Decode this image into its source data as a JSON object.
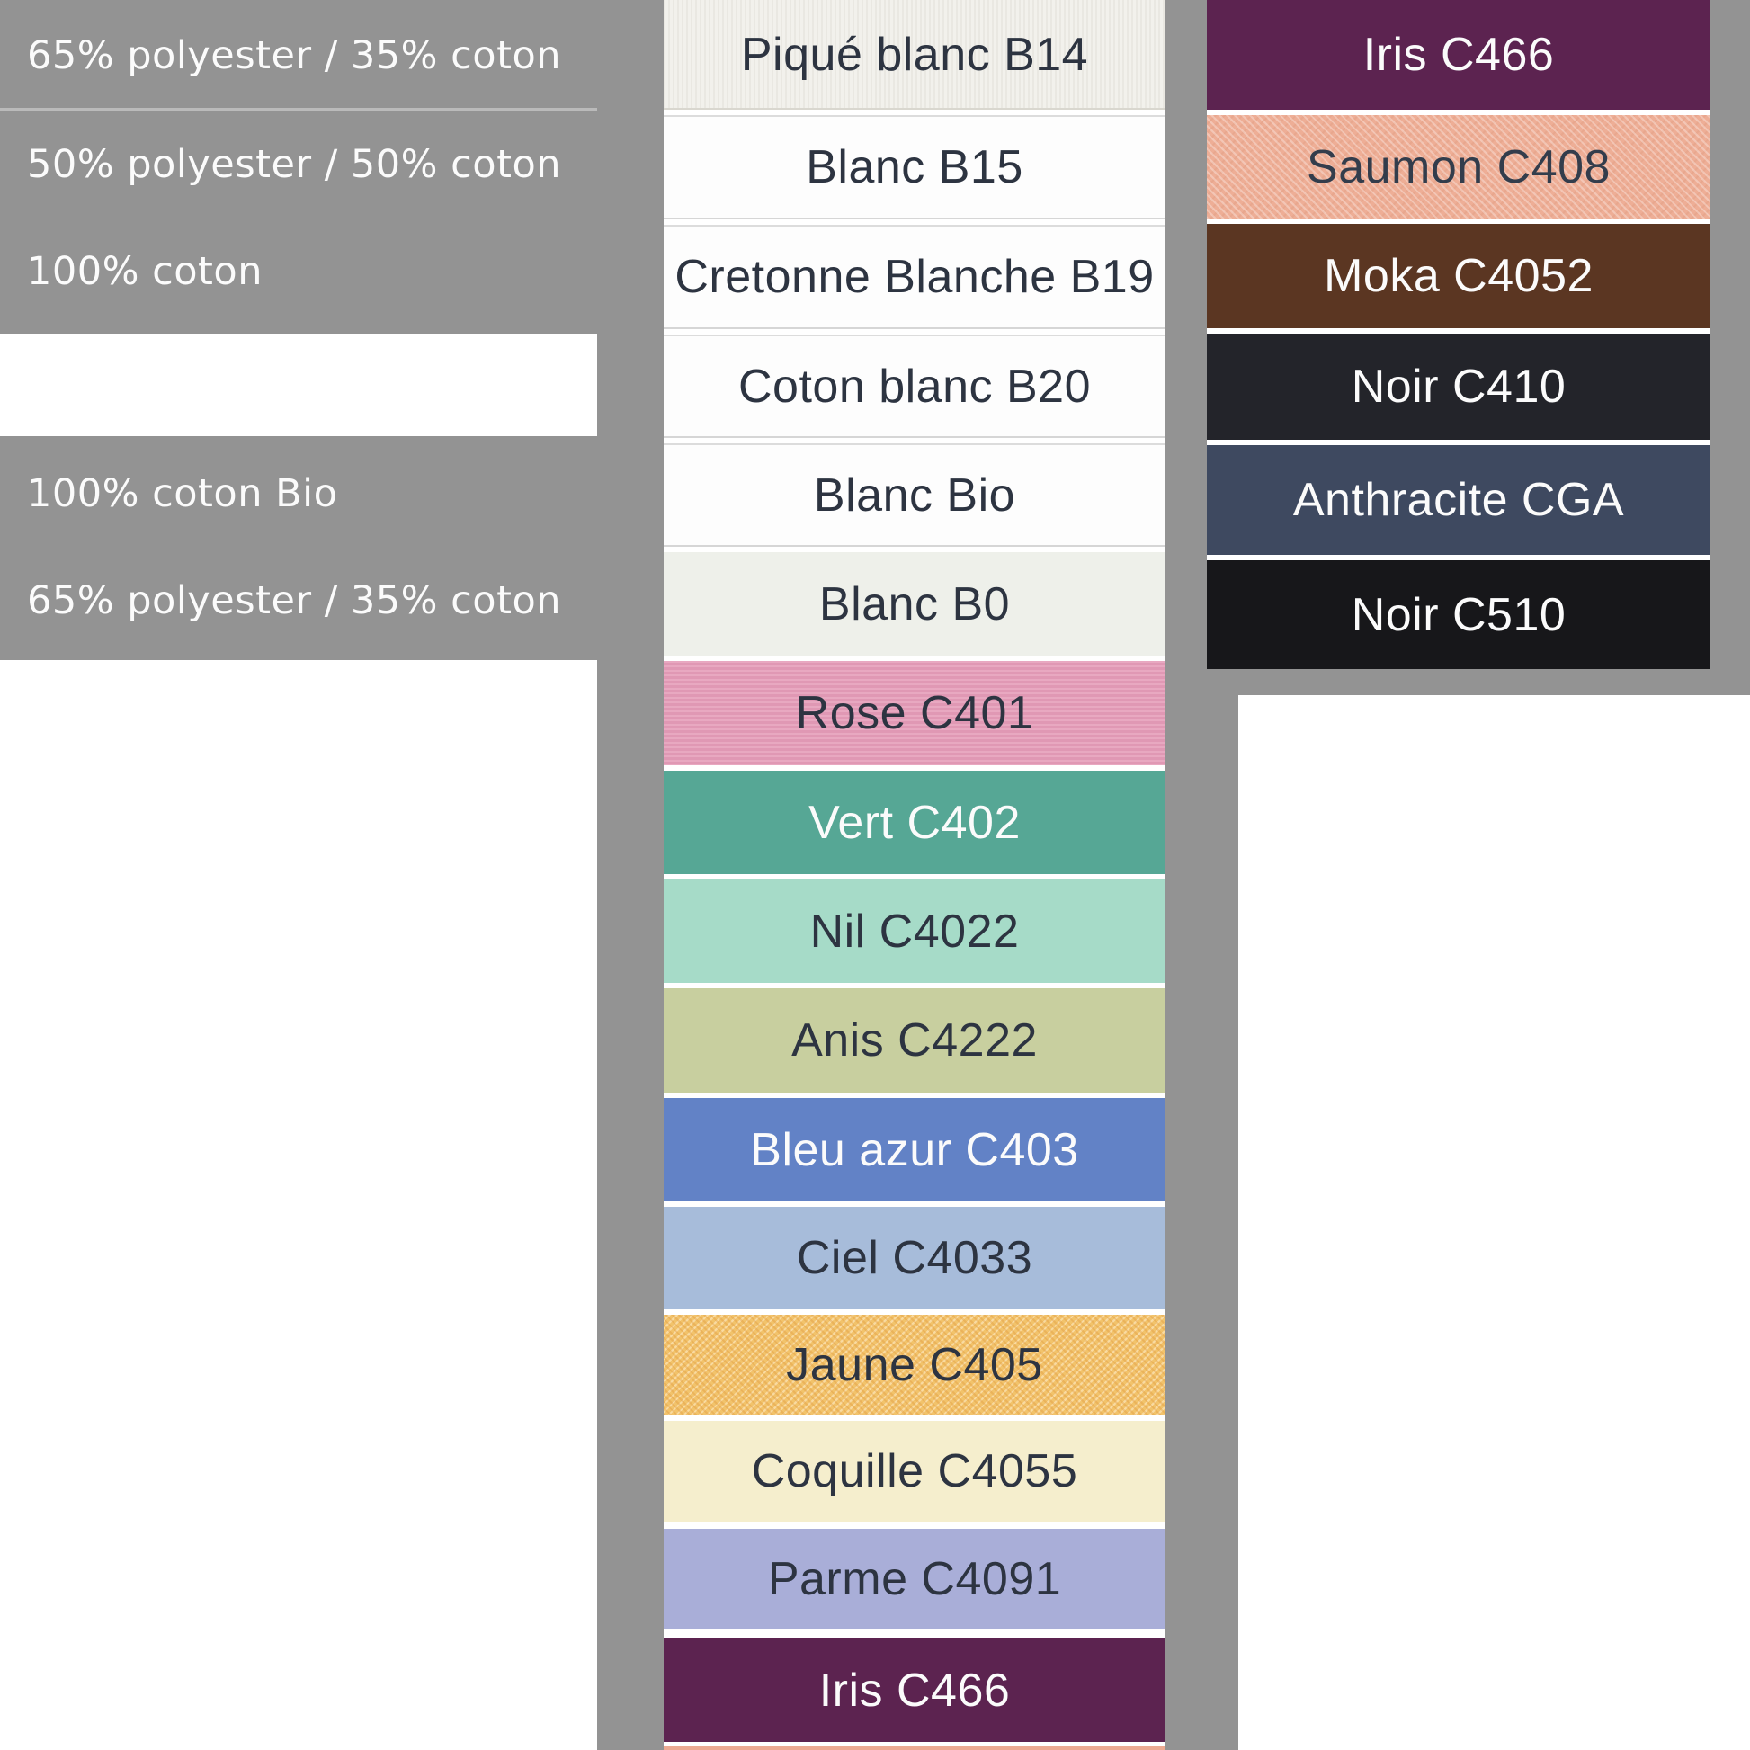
{
  "page": {
    "background": "#939393",
    "left_divider_color": "#bababa",
    "panel_white": "#ffffff"
  },
  "left_column": {
    "text_color": "#fbfbfb",
    "rows": [
      {
        "label": "65% polyester / 35% coton"
      },
      {
        "label": "50% polyester / 50% coton"
      },
      {
        "label": "100% coton"
      },
      {
        "label": "100% coton Bio"
      },
      {
        "label": "65% polyester / 35% coton"
      }
    ]
  },
  "middle_column": {
    "swatches": [
      {
        "label": "Piqué blanc B14",
        "bg": "#f2f1ec",
        "text": "#2d3441",
        "texture": "pique"
      },
      {
        "label": "Blanc B15",
        "bg": "#fdfdfd",
        "text": "#2d3441",
        "texture": "white-edge"
      },
      {
        "label": "Cretonne Blanche B19",
        "bg": "#fdfdfd",
        "text": "#2d3441",
        "texture": "white-edge"
      },
      {
        "label": "Coton blanc B20",
        "bg": "#fdfdfd",
        "text": "#2d3441",
        "texture": "white-edge"
      },
      {
        "label": "Blanc Bio",
        "bg": "#fdfdfd",
        "text": "#2d3441",
        "texture": "white-edge"
      },
      {
        "label": "Blanc B0",
        "bg": "#eef0ea",
        "text": "#2d3441",
        "texture": null
      },
      {
        "label": "Rose C401",
        "bg": "#e59cb8",
        "text": "#2d3441",
        "texture": "rose-weave"
      },
      {
        "label": "Vert C402",
        "bg": "#56a795",
        "text": "#fbfbfb",
        "texture": null
      },
      {
        "label": "Nil C4022",
        "bg": "#a6dbc8",
        "text": "#2d3441",
        "texture": null
      },
      {
        "label": "Anis C4222",
        "bg": "#c8cf9f",
        "text": "#2d3441",
        "texture": null
      },
      {
        "label": "Bleu azur C403",
        "bg": "#6282c6",
        "text": "#fbfbfb",
        "texture": null
      },
      {
        "label": "Ciel C4033",
        "bg": "#a7bcda",
        "text": "#2d3441",
        "texture": null
      },
      {
        "label": "Jaune C405",
        "bg": "#f2c36b",
        "text": "#2d3441",
        "texture": "jaune-weave"
      },
      {
        "label": "Coquille C4055",
        "bg": "#f5eecd",
        "text": "#2d3441",
        "texture": null
      },
      {
        "label": "Parme C4091",
        "bg": "#a9aed8",
        "text": "#2d3441",
        "texture": null
      },
      {
        "label": "Iris C466",
        "bg": "#5c2350",
        "text": "#fbfbfb",
        "texture": null
      },
      {
        "label": "",
        "bg": "#ecaa92",
        "text": "#2d3441",
        "texture": null
      }
    ]
  },
  "right_column": {
    "swatches": [
      {
        "label": "Iris C466",
        "bg": "#5c2350",
        "text": "#fbfbfb",
        "texture": null
      },
      {
        "label": "Saumon C408",
        "bg": "#eeae96",
        "text": "#333d4c",
        "texture": "saumon-weave"
      },
      {
        "label": "Moka C4052",
        "bg": "#5b3622",
        "text": "#fbfbfb",
        "texture": null
      },
      {
        "label": "Noir C410",
        "bg": "#23242a",
        "text": "#fbfbfb",
        "texture": null
      },
      {
        "label": "Anthracite CGA",
        "bg": "#3e4960",
        "text": "#fbfbfb",
        "texture": null
      },
      {
        "label": "Noir C510",
        "bg": "#17171a",
        "text": "#fbfbfb",
        "texture": null
      }
    ]
  }
}
